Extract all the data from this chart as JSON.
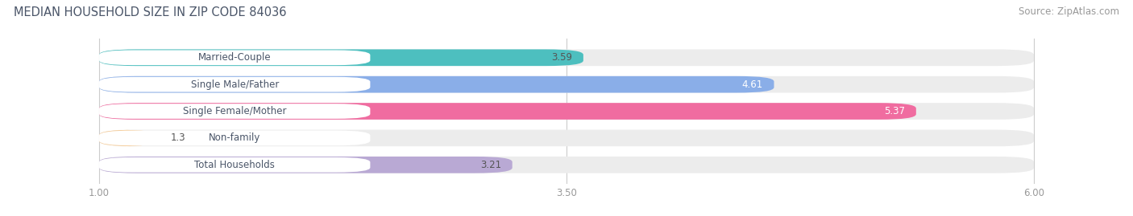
{
  "title": "MEDIAN HOUSEHOLD SIZE IN ZIP CODE 84036",
  "source": "Source: ZipAtlas.com",
  "categories": [
    "Married-Couple",
    "Single Male/Father",
    "Single Female/Mother",
    "Non-family",
    "Total Households"
  ],
  "values": [
    3.59,
    4.61,
    5.37,
    1.3,
    3.21
  ],
  "bar_colors": [
    "#4DBFBF",
    "#8AAEE8",
    "#F06CA0",
    "#F5C992",
    "#B9A9D4"
  ],
  "value_colors": [
    "#555555",
    "#ffffff",
    "#ffffff",
    "#555555",
    "#555555"
  ],
  "xlim": [
    0.5,
    6.5
  ],
  "xmin": 1.0,
  "xmax": 6.0,
  "xticks": [
    1.0,
    3.5,
    6.0
  ],
  "xtick_labels": [
    "1.00",
    "3.50",
    "6.00"
  ],
  "bar_height": 0.62,
  "title_fontsize": 10.5,
  "source_fontsize": 8.5,
  "value_fontsize": 8.5,
  "tick_fontsize": 8.5,
  "category_fontsize": 8.5,
  "background_color": "#ffffff",
  "bar_bg_color": "#ececec",
  "label_bg_color": "#ffffff",
  "grid_color": "#cccccc",
  "text_color": "#4a5568",
  "tick_color": "#999999"
}
